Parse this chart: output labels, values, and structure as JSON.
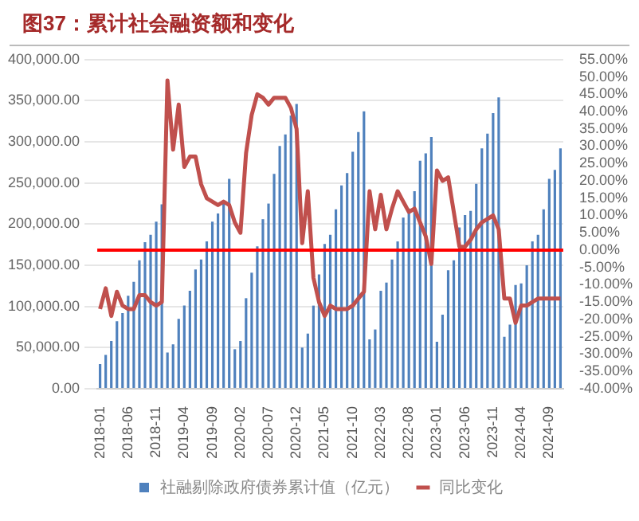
{
  "chart_data": {
    "type": "bar",
    "title": "图37：累计社会融资额和变化",
    "categories": [
      "2018-01",
      null,
      null,
      null,
      null,
      "2018-06",
      null,
      null,
      null,
      null,
      "2018-11",
      null,
      null,
      null,
      null,
      "2019-04",
      null,
      null,
      null,
      null,
      "2019-09",
      null,
      null,
      null,
      null,
      "2020-02",
      null,
      null,
      null,
      null,
      "2020-07",
      null,
      null,
      null,
      null,
      "2020-12",
      null,
      null,
      null,
      null,
      "2021-05",
      null,
      null,
      null,
      null,
      "2021-10",
      null,
      null,
      null,
      null,
      "2022-03",
      null,
      null,
      null,
      null,
      "2022-08",
      null,
      null,
      null,
      null,
      "2023-01",
      null,
      null,
      null,
      null,
      "2023-06",
      null,
      null,
      null,
      null,
      "2023-11",
      null,
      null,
      null,
      null,
      "2024-04",
      null,
      null,
      null,
      null,
      "2024-09",
      null,
      null
    ],
    "series": [
      {
        "name": "社融剔除政府债券累计值（亿元）",
        "color": "#4f81bd",
        "values": [
          30000,
          41000,
          58000,
          82000,
          92000,
          113000,
          130000,
          156000,
          178000,
          187000,
          203000,
          224000,
          44000,
          54000,
          85000,
          101000,
          119000,
          145000,
          157000,
          179000,
          203000,
          213000,
          225000,
          255000,
          48000,
          58000,
          110000,
          141000,
          173000,
          206000,
          225000,
          261000,
          295000,
          309000,
          332000,
          346000,
          50000,
          67000,
          101000,
          139000,
          176000,
          187000,
          218000,
          247000,
          262000,
          288000,
          312000,
          337000,
          60000,
          72000,
          119000,
          129000,
          157000,
          179000,
          208000,
          219000,
          240000,
          277000,
          286000,
          306000,
          57000,
          90000,
          144000,
          156000,
          196000,
          211000,
          216000,
          249000,
          292000,
          310000,
          335000,
          354000,
          63000,
          78000,
          126000,
          128000,
          150000,
          179000,
          187000,
          218000,
          255000,
          266000,
          292000
        ]
      },
      {
        "name": "同比变化",
        "type": "line",
        "axis": "y2",
        "color": "#c0504d",
        "values": [
          -17,
          -11,
          -19,
          -12,
          -16,
          -17,
          -17,
          -13,
          -13,
          -15,
          -16,
          -15,
          49,
          29,
          42,
          24,
          27,
          27,
          19,
          15,
          14,
          13,
          14,
          13,
          8,
          5,
          28,
          39,
          45,
          44,
          42,
          44,
          44,
          44,
          41,
          35,
          2,
          17,
          -8,
          -15,
          -19,
          -16,
          -17,
          -17,
          -17,
          -16,
          -14,
          -12,
          17,
          6,
          16,
          6,
          12,
          17,
          14,
          11,
          12,
          8,
          4,
          -4,
          23,
          20,
          21,
          11,
          1,
          1,
          3,
          6,
          8,
          9,
          10,
          6,
          -14,
          -14,
          -21,
          -16,
          -16,
          -15,
          -14,
          -14,
          -14,
          -14,
          -14
        ]
      }
    ],
    "ylim": [
      0,
      400000
    ],
    "yticks": [
      {
        "value": 0,
        "label": "0.00"
      },
      {
        "value": 50000,
        "label": "50,000.00"
      },
      {
        "value": 100000,
        "label": "100,000.00"
      },
      {
        "value": 150000,
        "label": "150,000.00"
      },
      {
        "value": 200000,
        "label": "200,000.00"
      },
      {
        "value": 250000,
        "label": "250,000.00"
      },
      {
        "value": 300000,
        "label": "300,000.00"
      },
      {
        "value": 350000,
        "label": "350,000.00"
      },
      {
        "value": 400000,
        "label": "400,000.00"
      }
    ],
    "y2lim": [
      -40,
      55
    ],
    "y2ticks": [
      {
        "value": -40,
        "label": "-40.00%"
      },
      {
        "value": -35,
        "label": "-35.00%"
      },
      {
        "value": -30,
        "label": "-30.00%"
      },
      {
        "value": -25,
        "label": "-25.00%"
      },
      {
        "value": -20,
        "label": "-20.00%"
      },
      {
        "value": -15,
        "label": "-15.00%"
      },
      {
        "value": -10,
        "label": "-10.00%"
      },
      {
        "value": -5,
        "label": "-5.00%"
      },
      {
        "value": 0,
        "label": "0.00%"
      },
      {
        "value": 5,
        "label": "5.00%"
      },
      {
        "value": 10,
        "label": "10.00%"
      },
      {
        "value": 15,
        "label": "15.00%"
      },
      {
        "value": 20,
        "label": "20.00%"
      },
      {
        "value": 25,
        "label": "25.00%"
      },
      {
        "value": 30,
        "label": "30.00%"
      },
      {
        "value": 35,
        "label": "35.00%"
      },
      {
        "value": 40,
        "label": "40.00%"
      },
      {
        "value": 45,
        "label": "45.00%"
      },
      {
        "value": 50,
        "label": "50.00%"
      },
      {
        "value": 55,
        "label": "55.00%"
      }
    ],
    "ref_lines": [
      {
        "axis": "y2",
        "value": 0,
        "color": "#ff0000"
      }
    ],
    "grid": "y",
    "legend": "bottom"
  }
}
